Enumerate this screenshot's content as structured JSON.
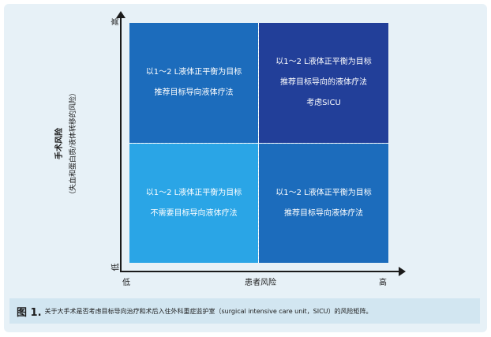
{
  "axes": {
    "y_label": "手术风险",
    "y_sublabel": "（失血和蛋白质/液体转移的风险）",
    "y_high": "高",
    "y_low": "低",
    "x_label": "患者风险",
    "x_low": "低",
    "x_high": "高"
  },
  "quadrants": {
    "top_left": {
      "lines": [
        "以1～2 L液体正平衡为目标",
        "推荐目标导向液体疗法"
      ]
    },
    "top_right": {
      "lines": [
        "以1～2 L液体正平衡为目标",
        "推荐目标导向的液体疗法",
        "考虑SICU"
      ]
    },
    "bottom_left": {
      "lines": [
        "以1～2 L液体正平衡为目标",
        "不需要目标导向液体疗法"
      ]
    },
    "bottom_right": {
      "lines": [
        "以1～2 L液体正平衡为目标",
        "推荐目标导向液体疗法"
      ]
    }
  },
  "caption": {
    "number": "图 1.",
    "text": "关于大手术是否考虑目标导向治疗和术后入住外科重症监护室（surgical intensive care unit，SICU）的风险矩阵。"
  },
  "colors": {
    "high_patient_high_surgical": "#223f99",
    "mixed_risk": "#1c6cbc",
    "low_risk": "#2aa5e6",
    "panel_background": "#e7f1f7",
    "caption_background": "#d2e6f1"
  }
}
